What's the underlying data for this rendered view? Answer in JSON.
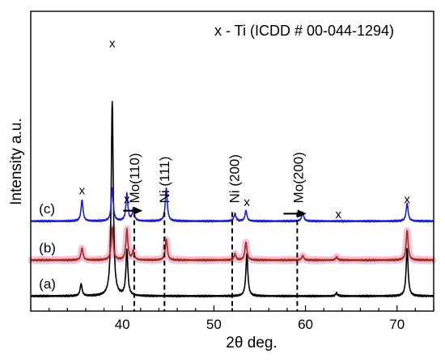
{
  "chart_data": {
    "type": "line",
    "title": "",
    "xlabel": "2θ deg.",
    "ylabel": "Intensity a.u.",
    "xlim": [
      30,
      74
    ],
    "ylim": [
      0,
      100
    ],
    "x_ticks": [
      "40",
      "50",
      "60",
      "70"
    ],
    "x_tick_values": [
      40,
      50,
      60,
      70
    ],
    "grid": false,
    "legend_text": "x - Ti (ICDD # 00-044-1294)",
    "legend_placement": "top-right",
    "series": [
      {
        "label": "(a)",
        "color": "#000000",
        "baseline": 5,
        "peaks": [
          {
            "x": 35.5,
            "h": 4
          },
          {
            "x": 38.9,
            "h": 65
          },
          {
            "x": 40.5,
            "h": 15
          },
          {
            "x": 53.6,
            "h": 14
          },
          {
            "x": 63.4,
            "h": 1
          },
          {
            "x": 71.1,
            "h": 16
          }
        ]
      },
      {
        "label": "(b)",
        "color": "#a0301f",
        "highlight": "#f3b6cf",
        "baseline": 17,
        "peaks": [
          {
            "x": 35.6,
            "h": 4
          },
          {
            "x": 38.9,
            "h": 11
          },
          {
            "x": 40.5,
            "h": 10
          },
          {
            "x": 41.2,
            "h": 3
          },
          {
            "x": 44.8,
            "h": 7
          },
          {
            "x": 52.3,
            "h": 2
          },
          {
            "x": 53.5,
            "h": 6
          },
          {
            "x": 59.7,
            "h": 1.5
          },
          {
            "x": 63.4,
            "h": 1
          },
          {
            "x": 71.1,
            "h": 10
          }
        ]
      },
      {
        "label": "(c)",
        "color": "#1f1fd0",
        "baseline": 30,
        "peaks": [
          {
            "x": 35.6,
            "h": 7
          },
          {
            "x": 38.9,
            "h": 11
          },
          {
            "x": 40.5,
            "h": 9
          },
          {
            "x": 41.2,
            "h": 4
          },
          {
            "x": 44.8,
            "h": 11
          },
          {
            "x": 52.3,
            "h": 2.5
          },
          {
            "x": 53.5,
            "h": 3.5
          },
          {
            "x": 59.7,
            "h": 3
          },
          {
            "x": 71.1,
            "h": 6
          }
        ]
      }
    ],
    "ti_markers": [
      {
        "x": 35.6,
        "y": 39
      },
      {
        "x": 38.9,
        "y": 88
      },
      {
        "x": 40.5,
        "y": 36
      },
      {
        "x": 53.6,
        "y": 35
      },
      {
        "x": 63.6,
        "y": 31
      },
      {
        "x": 71.1,
        "y": 36
      }
    ],
    "peak_labels": [
      {
        "text": "Mo(110)",
        "x": 41.3
      },
      {
        "text": "Ni (111)",
        "x": 44.6
      },
      {
        "text": "Ni (200)",
        "x": 52.2
      },
      {
        "text": "Mo(200)",
        "x": 59.2
      }
    ],
    "dashed_lines": [
      41.3,
      44.6,
      52.0,
      59.1
    ],
    "shift_arrows": [
      {
        "from": 40.1,
        "to": 42.2,
        "y": 33.5
      },
      {
        "from": 57.6,
        "to": 60.1,
        "y": 32.5
      }
    ]
  }
}
